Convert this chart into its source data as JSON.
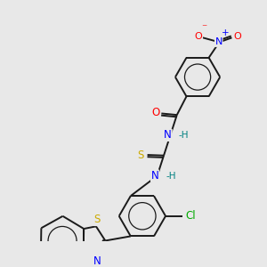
{
  "background_color": "#e8e8e8",
  "bond_color": "#1a1a1a",
  "atom_colors": {
    "N": "#0000ff",
    "O": "#ff0000",
    "S": "#ccaa00",
    "Cl": "#00aa00",
    "C": "#1a1a1a",
    "H": "#008080"
  },
  "figsize": [
    3.0,
    3.0
  ],
  "dpi": 100,
  "lw": 1.4,
  "fs": 7.5
}
